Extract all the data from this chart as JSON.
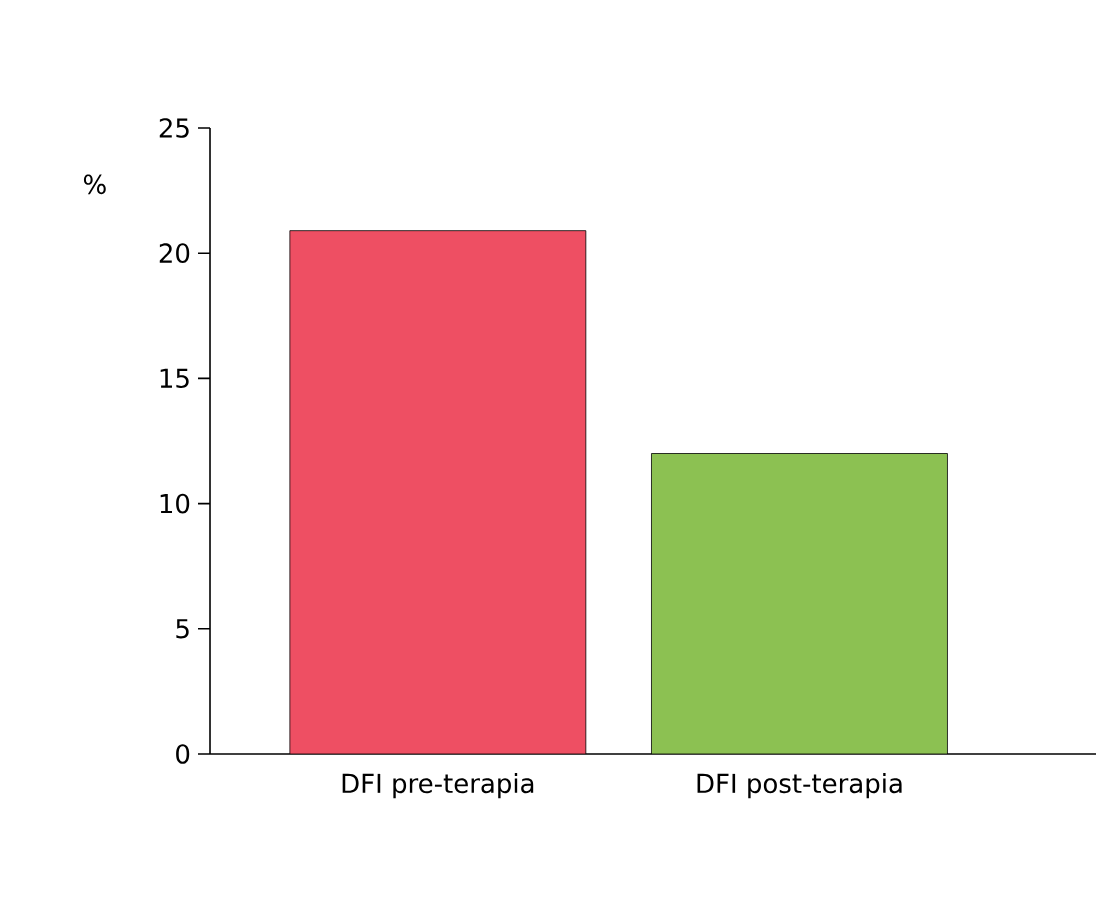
{
  "chart_data": {
    "type": "bar",
    "ylabel": "%",
    "categories": [
      "DFI pre-terapia",
      "DFI post-terapia"
    ],
    "values": [
      20.9,
      12
    ],
    "colors": [
      "#ee4f63",
      "#8cc152"
    ],
    "ylim": [
      0,
      25
    ],
    "yticks": [
      0,
      5,
      10,
      15,
      20,
      25
    ],
    "grid": false
  }
}
